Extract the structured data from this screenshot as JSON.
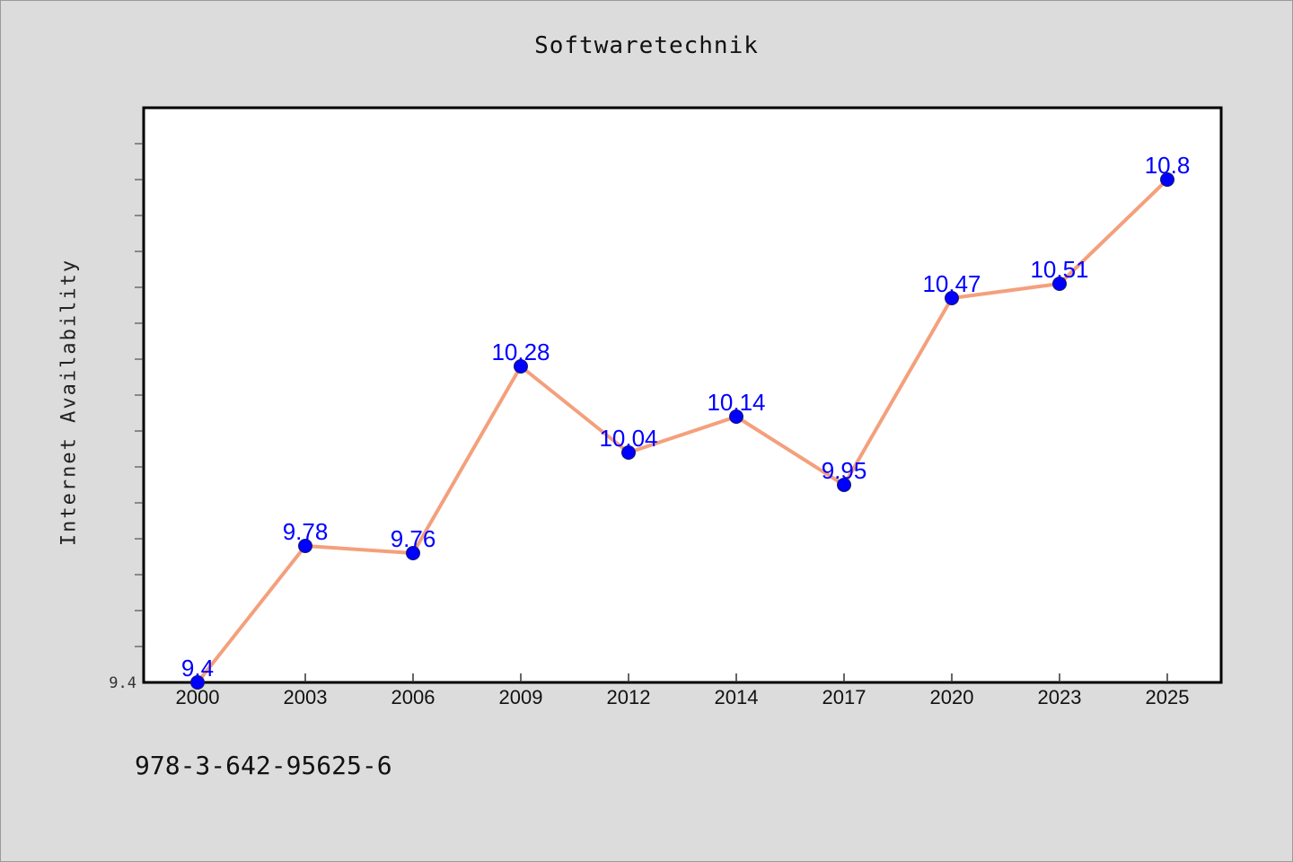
{
  "chart_data": {
    "type": "line",
    "title": "Softwaretechnik",
    "xlabel": "",
    "ylabel": "Internet Availability",
    "categories": [
      "2000",
      "2003",
      "2006",
      "2009",
      "2012",
      "2014",
      "2017",
      "2020",
      "2023",
      "2025"
    ],
    "series": [
      {
        "values": [
          9.4,
          9.78,
          9.76,
          10.28,
          10.04,
          10.14,
          9.95,
          10.47,
          10.51,
          10.8
        ],
        "labels": [
          "9.4",
          "9.78",
          "9.76",
          "10.28",
          "10.04",
          "10.14",
          "9.95",
          "10.47",
          "10.51",
          "10.8"
        ]
      }
    ],
    "ylim": [
      9.4,
      11.0
    ],
    "y_tick_labels": [
      "9.4"
    ],
    "grid": false,
    "line_color": "#f4a07c",
    "marker_color": "#0000ff",
    "label_color": "#0000ff",
    "background": "#dcdcdc",
    "plot_background": "#ffffff"
  },
  "footer": {
    "isbn": "978-3-642-95625-6"
  }
}
